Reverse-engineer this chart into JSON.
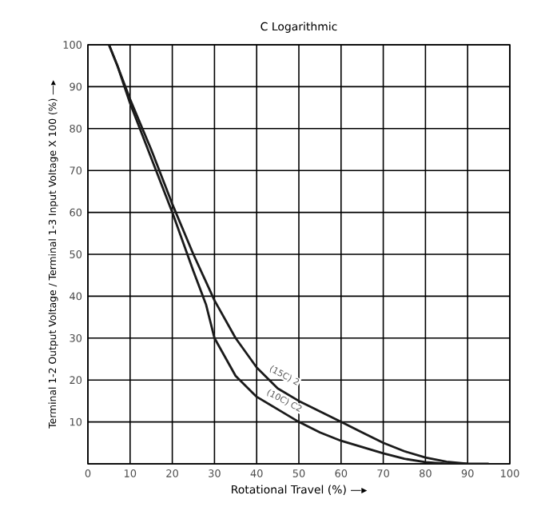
{
  "chart_data": {
    "type": "line",
    "title": "C Logarithmic",
    "xlabel": "Rotational Travel (%) —▸",
    "ylabel": "Terminal 1-2 Output Voltage / Terminal 1-3 Input Voltage X 100 (%) —▸",
    "xlim": [
      0,
      100
    ],
    "ylim": [
      0,
      100
    ],
    "xticks": [
      0,
      10,
      20,
      30,
      40,
      50,
      60,
      70,
      80,
      90,
      100
    ],
    "yticks": [
      {
        "value": 0,
        "label": null
      },
      10,
      20,
      30,
      40,
      50,
      60,
      70,
      80,
      90,
      100
    ],
    "grid": true,
    "marker": "none",
    "line_style": "solid",
    "series": [
      {
        "color": "#1a1a1a",
        "x": [
          5,
          7,
          10,
          15,
          20,
          25,
          30,
          35,
          40,
          45,
          50,
          55,
          60,
          65,
          70,
          75,
          80,
          85,
          90,
          95
        ],
        "values": [
          100,
          95,
          87,
          75,
          62,
          50,
          39,
          30,
          23,
          18,
          15,
          12.5,
          10,
          7.5,
          5,
          3,
          1.5,
          0.5,
          0,
          0
        ]
      },
      {
        "color": "#1a1a1a",
        "x": [
          5,
          7,
          10,
          15,
          20,
          25,
          28,
          30,
          35,
          40,
          45,
          50,
          55,
          60,
          65,
          70,
          75,
          80,
          85,
          90
        ],
        "values": [
          100,
          95,
          86,
          73,
          60,
          46,
          38,
          30,
          21,
          16,
          13,
          10,
          7.5,
          5.5,
          4,
          2.5,
          1.2,
          0.4,
          0,
          0
        ]
      }
    ],
    "annotations": [
      {
        "text": "(15C) 2",
        "x": 46,
        "y": 20
      },
      {
        "text": "(10C) C2",
        "x": 46,
        "y": 14
      }
    ]
  }
}
